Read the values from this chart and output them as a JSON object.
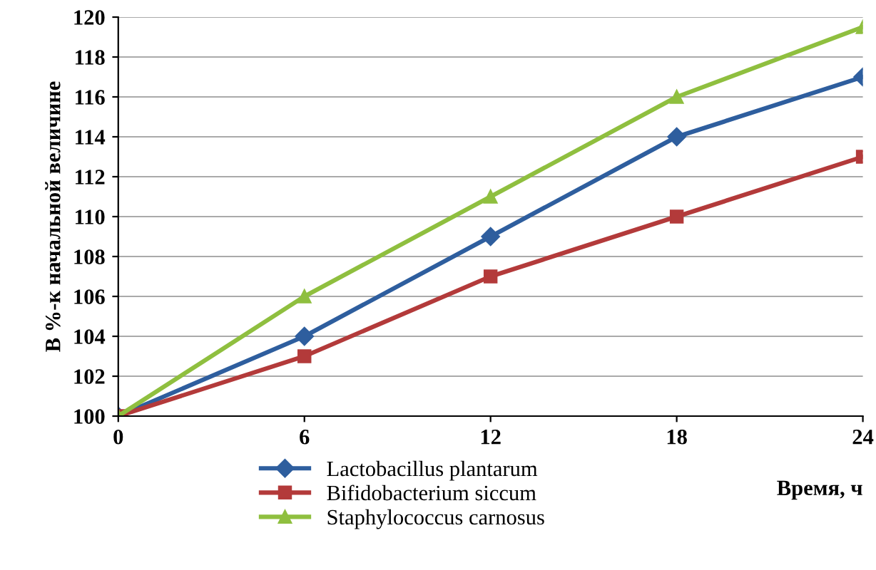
{
  "chart_data": {
    "type": "line",
    "xlabel": "Время, ч",
    "ylabel": "В %-к начальной величине",
    "x": [
      0,
      6,
      12,
      18,
      24
    ],
    "xlim": [
      0,
      24
    ],
    "xticks": [
      0,
      6,
      12,
      18,
      24
    ],
    "ylim": [
      100,
      120
    ],
    "yticks": [
      100,
      102,
      104,
      106,
      108,
      110,
      112,
      114,
      116,
      118,
      120
    ],
    "grid": "y",
    "legend": "bottom",
    "series": [
      {
        "name": "Lactobacillus plantarum",
        "color": "#2e5e9e",
        "marker": "diamond",
        "values": [
          100,
          104,
          109,
          114,
          117
        ]
      },
      {
        "name": "Bifidobacterium siccum",
        "color": "#b33a3a",
        "marker": "square",
        "values": [
          100,
          103,
          107,
          110,
          113
        ]
      },
      {
        "name": "Staphylococcus carnosus",
        "color": "#8fbf3f",
        "marker": "triangle",
        "values": [
          100,
          106,
          111,
          116,
          119.5
        ]
      }
    ]
  }
}
